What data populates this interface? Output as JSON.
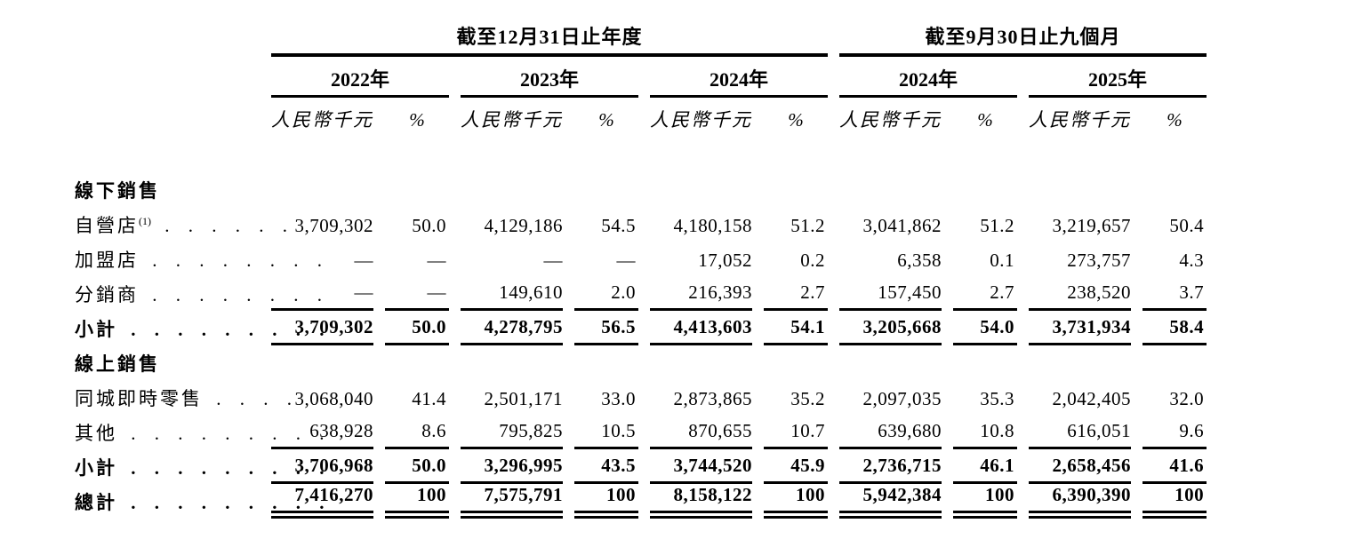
{
  "page": {
    "background_color": "#ffffff",
    "text_color": "#000000"
  },
  "table": {
    "groups": [
      {
        "title": "截至12月31日止年度",
        "years": [
          "2022年",
          "2023年",
          "2024年"
        ]
      },
      {
        "title": "截至9月30日止九個月",
        "years": [
          "2024年",
          "2025年"
        ]
      }
    ],
    "column_headers": {
      "amount": "人民幣千元",
      "percent": "%"
    },
    "rows": [
      {
        "kind": "section",
        "label": "線下銷售"
      },
      {
        "kind": "item",
        "label": "自營店",
        "sup": "(1)",
        "dots": ". . . . . .",
        "bold": false,
        "values": [
          [
            "3,709,302",
            "50.0"
          ],
          [
            "4,129,186",
            "54.5"
          ],
          [
            "4,180,158",
            "51.2"
          ],
          [
            "3,041,862",
            "51.2"
          ],
          [
            "3,219,657",
            "50.4"
          ]
        ]
      },
      {
        "kind": "item",
        "label": "加盟店",
        "dots": ". . . . . . . .",
        "bold": false,
        "values": [
          [
            "—",
            "—"
          ],
          [
            "—",
            "—"
          ],
          [
            "17,052",
            "0.2"
          ],
          [
            "6,358",
            "0.1"
          ],
          [
            "273,757",
            "4.3"
          ]
        ]
      },
      {
        "kind": "item",
        "label": "分銷商",
        "dots": ". . . . . . . .",
        "bold": false,
        "rule": "single",
        "values": [
          [
            "—",
            "—"
          ],
          [
            "149,610",
            "2.0"
          ],
          [
            "216,393",
            "2.7"
          ],
          [
            "157,450",
            "2.7"
          ],
          [
            "238,520",
            "3.7"
          ]
        ]
      },
      {
        "kind": "item",
        "label": "小計",
        "dots": ". . . . . . . . .",
        "bold": true,
        "rule": "single",
        "values": [
          [
            "3,709,302",
            "50.0"
          ],
          [
            "4,278,795",
            "56.5"
          ],
          [
            "4,413,603",
            "54.1"
          ],
          [
            "3,205,668",
            "54.0"
          ],
          [
            "3,731,934",
            "58.4"
          ]
        ]
      },
      {
        "kind": "section",
        "label": "線上銷售"
      },
      {
        "kind": "item",
        "label": "同城即時零售",
        "dots": ". . . .",
        "bold": false,
        "values": [
          [
            "3,068,040",
            "41.4"
          ],
          [
            "2,501,171",
            "33.0"
          ],
          [
            "2,873,865",
            "35.2"
          ],
          [
            "2,097,035",
            "35.3"
          ],
          [
            "2,042,405",
            "32.0"
          ]
        ]
      },
      {
        "kind": "item",
        "label": "其他",
        "dots": ". . . . . . . . .",
        "bold": false,
        "rule": "single",
        "values": [
          [
            "638,928",
            "8.6"
          ],
          [
            "795,825",
            "10.5"
          ],
          [
            "870,655",
            "10.7"
          ],
          [
            "639,680",
            "10.8"
          ],
          [
            "616,051",
            "9.6"
          ]
        ]
      },
      {
        "kind": "item",
        "label": "小計",
        "dots": ". . . . . . . . .",
        "bold": true,
        "rule": "single",
        "values": [
          [
            "3,706,968",
            "50.0"
          ],
          [
            "3,296,995",
            "43.5"
          ],
          [
            "3,744,520",
            "45.9"
          ],
          [
            "2,736,715",
            "46.1"
          ],
          [
            "2,658,456",
            "41.6"
          ]
        ]
      },
      {
        "kind": "item",
        "label": "總計",
        "dots": ". . . . . . . . .",
        "bold": true,
        "rule": "double",
        "values": [
          [
            "7,416,270",
            "100"
          ],
          [
            "7,575,791",
            "100"
          ],
          [
            "8,158,122",
            "100"
          ],
          [
            "5,942,384",
            "100"
          ],
          [
            "6,390,390",
            "100"
          ]
        ]
      }
    ]
  }
}
